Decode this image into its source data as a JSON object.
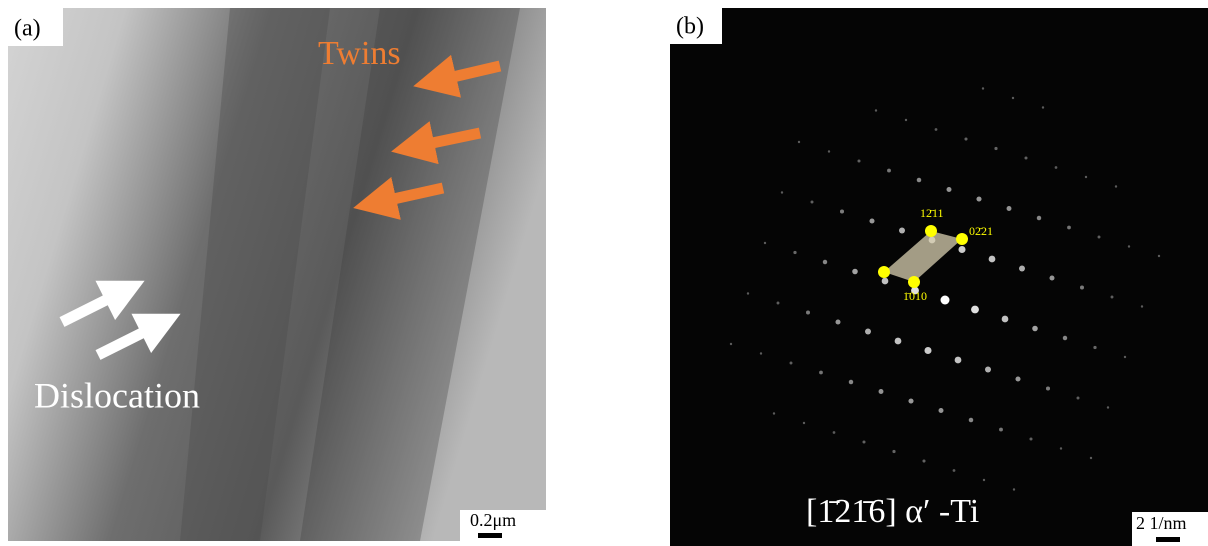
{
  "panel_a": {
    "label": "(a)",
    "twins": "Twins",
    "dislocation": "Dislocation",
    "scale": "0.2μm"
  },
  "panel_b": {
    "label": "(b)",
    "spots": [
      "12̄11",
      "02̄21",
      "1̄010"
    ],
    "zone": "[1̄21̄6] α′ -Ti",
    "scale": "2 1/nm"
  }
}
